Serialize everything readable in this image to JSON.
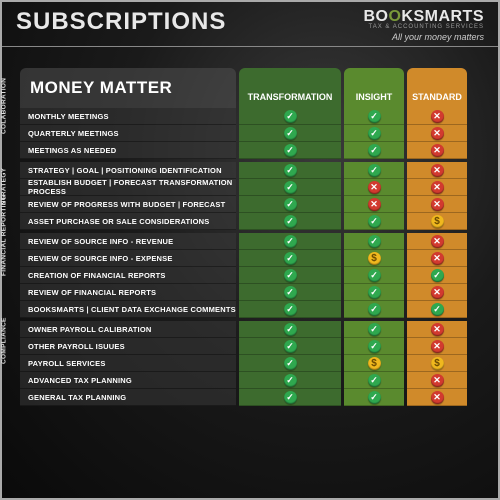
{
  "header": {
    "title": "SUBSCRIPTIONS",
    "logo_part1": "BO",
    "logo_part2": "O",
    "logo_part3": "KSMARTS",
    "logo_sub": "TAX & ACCOUNTING SERVICES",
    "tagline": "All your money matters"
  },
  "table": {
    "row_header": "MONEY MATTER",
    "tiers": [
      {
        "label": "TRANSFORMATION",
        "color": "#3d6b2e",
        "width": "w"
      },
      {
        "label": "INSIGHT",
        "color": "#5a8a2e",
        "width": "n"
      },
      {
        "label": "STANDARD",
        "color": "#d08a2a",
        "width": "n"
      }
    ],
    "icon_colors": {
      "check": "#2fa84f",
      "cross": "#d23a2f",
      "dollar": "#f0b81e"
    },
    "categories": [
      {
        "label": "COLABORATION",
        "rows": [
          {
            "feature": "MONTHLY MEETINGS",
            "vals": [
              "check",
              "check",
              "cross"
            ]
          },
          {
            "feature": "QUARTERLY MEETINGS",
            "vals": [
              "check",
              "check",
              "cross"
            ]
          },
          {
            "feature": "MEETINGS AS NEEDED",
            "vals": [
              "check",
              "check",
              "cross"
            ]
          }
        ]
      },
      {
        "label": "STRATEGY",
        "rows": [
          {
            "feature": "STRATEGY | GOAL | POSITIONING IDENTIFICATION",
            "vals": [
              "check",
              "check",
              "cross"
            ]
          },
          {
            "feature": "ESTABLISH BUDGET | FORECAST TRANSFORMATION PROCESS",
            "vals": [
              "check",
              "cross",
              "cross"
            ]
          },
          {
            "feature": "REVIEW OF PROGRESS WITH BUDGET | FORECAST",
            "vals": [
              "check",
              "cross",
              "cross"
            ]
          },
          {
            "feature": "ASSET PURCHASE OR SALE CONSIDERATIONS",
            "vals": [
              "check",
              "check",
              "dollar"
            ]
          }
        ]
      },
      {
        "label": "FINANCIAL REPORTING",
        "rows": [
          {
            "feature": "REVIEW OF SOURCE INFO - REVENUE",
            "vals": [
              "check",
              "check",
              "cross"
            ]
          },
          {
            "feature": "REVIEW OF SOURCE INFO - EXPENSE",
            "vals": [
              "check",
              "dollar",
              "cross"
            ]
          },
          {
            "feature": "CREATION OF FINANCIAL REPORTS",
            "vals": [
              "check",
              "check",
              "check"
            ]
          },
          {
            "feature": "REVIEW OF FINANCIAL REPORTS",
            "vals": [
              "check",
              "check",
              "cross"
            ]
          },
          {
            "feature": "BOOKSMARTS | CLIENT DATA EXCHANGE COMMENTS",
            "vals": [
              "check",
              "check",
              "check"
            ]
          }
        ]
      },
      {
        "label": "COMPLIANCE",
        "rows": [
          {
            "feature": "OWNER PAYROLL CALIBRATION",
            "vals": [
              "check",
              "check",
              "cross"
            ]
          },
          {
            "feature": "OTHER PAYROLL ISUUES",
            "vals": [
              "check",
              "check",
              "cross"
            ]
          },
          {
            "feature": "PAYROLL SERVICES",
            "vals": [
              "check",
              "dollar",
              "dollar"
            ]
          },
          {
            "feature": "ADVANCED TAX PLANNING",
            "vals": [
              "check",
              "check",
              "cross"
            ]
          },
          {
            "feature": "GENERAL TAX PLANNING",
            "vals": [
              "check",
              "check",
              "cross"
            ]
          }
        ]
      }
    ]
  }
}
